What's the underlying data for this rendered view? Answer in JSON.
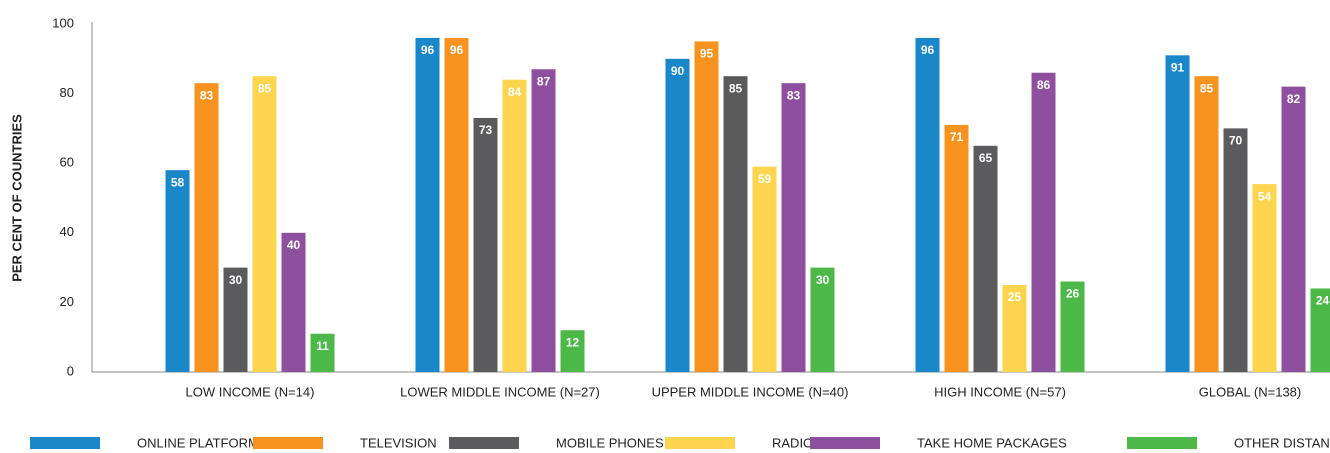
{
  "chart_data": {
    "type": "bar",
    "y_label": "PER CENT OF COUNTRIES",
    "categories": [
      "LOW INCOME (N=14)",
      "LOWER MIDDLE INCOME (N=27)",
      "UPPER MIDDLE INCOME (N=40)",
      "HIGH INCOME (N=57)",
      "GLOBAL (N=138)"
    ],
    "series": [
      {
        "name": "ONLINE PLATFORMS",
        "color": "#1a87c9",
        "values": [
          58,
          96,
          90,
          96,
          91
        ]
      },
      {
        "name": "TELEVISION",
        "color": "#f7931e",
        "values": [
          83,
          96,
          95,
          71,
          85
        ]
      },
      {
        "name": "MOBILE PHONES",
        "color": "#5b5b5e",
        "values": [
          30,
          73,
          85,
          65,
          70
        ]
      },
      {
        "name": "RADIO",
        "color": "#ffd54f",
        "values": [
          85,
          84,
          59,
          25,
          54
        ]
      },
      {
        "name": "TAKE HOME PACKAGES",
        "color": "#8e4f9e",
        "values": [
          40,
          87,
          83,
          86,
          82
        ]
      },
      {
        "name": "OTHER DISTANCE LEARNING",
        "color": "#4cb848",
        "values": [
          11,
          12,
          30,
          26,
          24
        ]
      }
    ],
    "ylim": [
      0,
      100
    ],
    "yticks": [
      0,
      20,
      40,
      60,
      80,
      100
    ],
    "grid": false,
    "legend": "bottom"
  }
}
